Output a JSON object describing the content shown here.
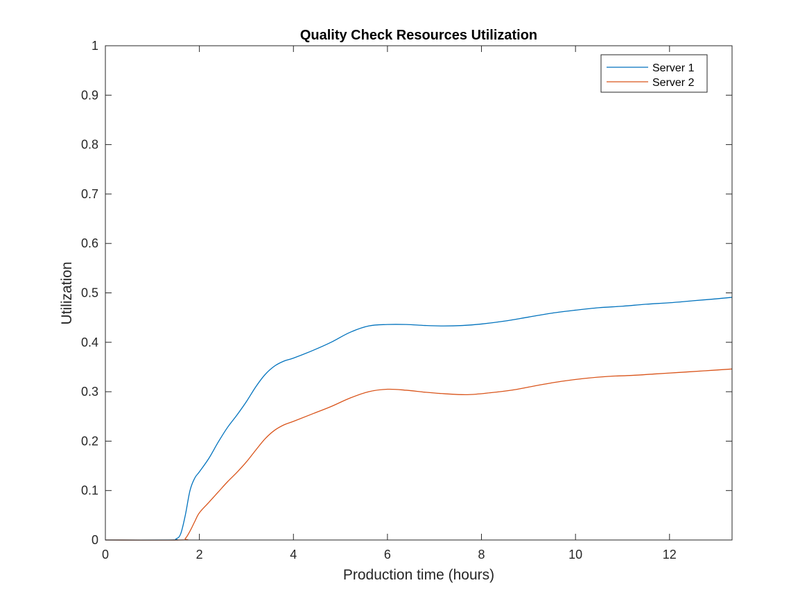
{
  "chart_data": {
    "type": "line",
    "title": "Quality Check Resources Utilization",
    "xlabel": "Production time (hours)",
    "ylabel": "Utilization",
    "xlim": [
      0,
      13.33
    ],
    "ylim": [
      0,
      1
    ],
    "xticks": [
      0,
      2,
      4,
      6,
      8,
      10,
      12
    ],
    "xtick_labels": [
      "0",
      "2",
      "4",
      "6",
      "8",
      "10",
      "12"
    ],
    "yticks": [
      0,
      0.1,
      0.2,
      0.3,
      0.4,
      0.5,
      0.6,
      0.7,
      0.8,
      0.9,
      1
    ],
    "ytick_labels": [
      "0",
      "0.1",
      "0.2",
      "0.3",
      "0.4",
      "0.5",
      "0.6",
      "0.7",
      "0.8",
      "0.9",
      "1"
    ],
    "grid": false,
    "legend_position": "top-right",
    "series": [
      {
        "name": "Server 1",
        "color": "#0072BD",
        "x": [
          0,
          1.4,
          1.5,
          1.6,
          1.7,
          1.8,
          1.9,
          2.0,
          2.2,
          2.4,
          2.6,
          2.8,
          3.0,
          3.2,
          3.4,
          3.6,
          3.8,
          4.0,
          4.4,
          4.8,
          5.2,
          5.6,
          6.0,
          6.4,
          6.8,
          7.2,
          7.6,
          8.0,
          8.5,
          9.0,
          9.5,
          10.0,
          10.5,
          11.0,
          11.5,
          12.0,
          12.5,
          13.0,
          13.33
        ],
        "y": [
          0,
          0,
          0.002,
          0.012,
          0.05,
          0.1,
          0.125,
          0.138,
          0.165,
          0.198,
          0.228,
          0.253,
          0.28,
          0.31,
          0.335,
          0.352,
          0.362,
          0.368,
          0.383,
          0.4,
          0.42,
          0.433,
          0.436,
          0.436,
          0.434,
          0.433,
          0.434,
          0.437,
          0.443,
          0.451,
          0.459,
          0.465,
          0.47,
          0.473,
          0.477,
          0.48,
          0.484,
          0.488,
          0.491
        ]
      },
      {
        "name": "Server 2",
        "color": "#D95319",
        "x": [
          0,
          1.6,
          1.7,
          1.8,
          1.9,
          2.0,
          2.2,
          2.4,
          2.6,
          2.8,
          3.0,
          3.2,
          3.4,
          3.6,
          3.8,
          4.0,
          4.4,
          4.8,
          5.2,
          5.6,
          6.0,
          6.4,
          6.8,
          7.2,
          7.7,
          8.2,
          8.7,
          9.2,
          9.7,
          10.2,
          10.7,
          11.2,
          11.7,
          12.2,
          12.7,
          13.33
        ],
        "y": [
          0,
          0,
          0.003,
          0.018,
          0.037,
          0.055,
          0.076,
          0.097,
          0.118,
          0.137,
          0.158,
          0.182,
          0.205,
          0.222,
          0.233,
          0.24,
          0.255,
          0.27,
          0.287,
          0.3,
          0.305,
          0.303,
          0.299,
          0.296,
          0.294,
          0.298,
          0.304,
          0.313,
          0.321,
          0.327,
          0.331,
          0.333,
          0.336,
          0.339,
          0.342,
          0.346
        ]
      }
    ]
  }
}
